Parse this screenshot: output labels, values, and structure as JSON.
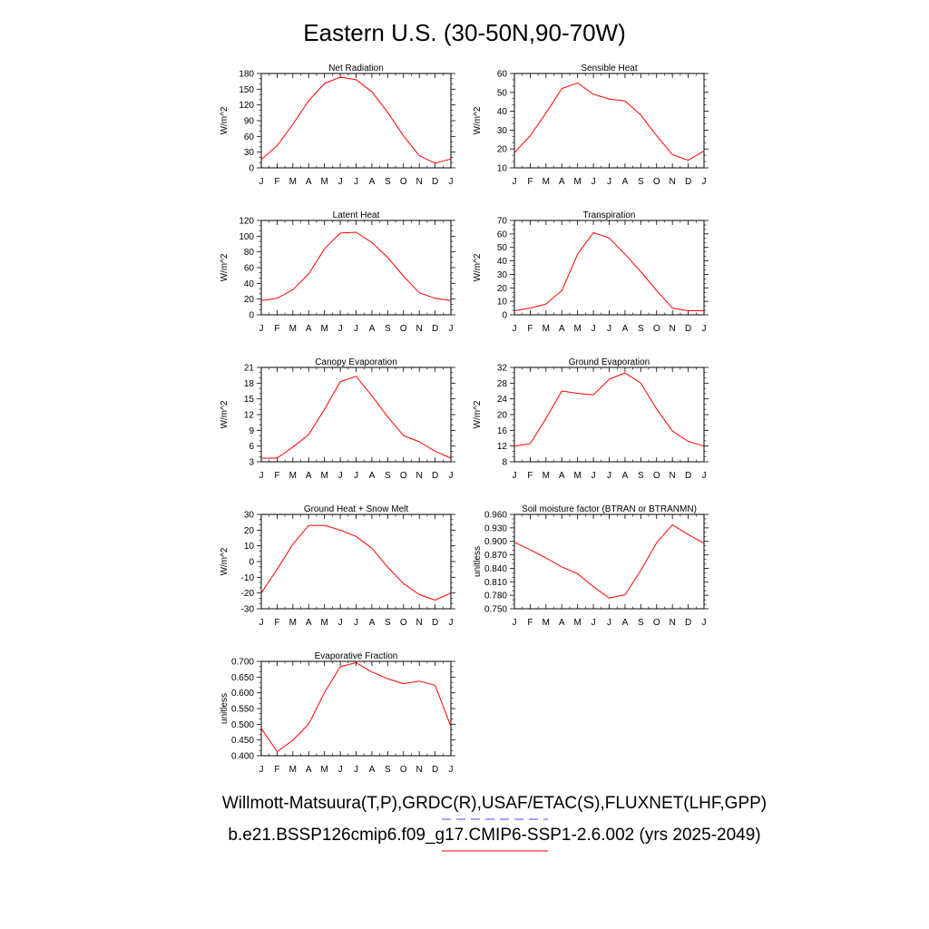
{
  "title": "Eastern U.S. (30-50N,90-70W)",
  "footer": {
    "line1": "Willmott-Matsuura(T,P),GRDC(R),USAF/ETAC(S),FLUXNET(LHF,GPP)",
    "line2": "b.e21.BSSP126cmip6.f09_g17.CMIP6-SSP1-2.6.002 (yrs 2025-2049)",
    "line1_color": "#4a4aff",
    "line2_color": "#ff0000"
  },
  "line_color": "#ff0000",
  "months": [
    "J",
    "F",
    "M",
    "A",
    "M",
    "J",
    "J",
    "A",
    "S",
    "O",
    "N",
    "D",
    "J"
  ],
  "chart_data": [
    {
      "type": "line",
      "title": "Net Radiation",
      "ylabel": "W/m^2",
      "ylim": [
        0,
        180
      ],
      "yticks": [
        "0",
        "30",
        "60",
        "90",
        "120",
        "150",
        "180"
      ],
      "yticks_val": [
        0,
        30,
        60,
        90,
        120,
        150,
        180
      ],
      "values": [
        16,
        42,
        83,
        128,
        161,
        173,
        168,
        145,
        106,
        61,
        23,
        9,
        17
      ]
    },
    {
      "type": "line",
      "title": "Sensible Heat",
      "ylabel": "W/m^2",
      "ylim": [
        10,
        60
      ],
      "yticks": [
        "10",
        "20",
        "30",
        "40",
        "50",
        "60"
      ],
      "yticks_val": [
        10,
        20,
        30,
        40,
        50,
        60
      ],
      "values": [
        18,
        27,
        39,
        52,
        55,
        49,
        46.5,
        45.5,
        38,
        27,
        17,
        14,
        19
      ]
    },
    {
      "type": "line",
      "title": "Latent Heat",
      "ylabel": "W/m^2",
      "ylim": [
        0,
        120
      ],
      "yticks": [
        "0",
        "20",
        "40",
        "60",
        "80",
        "100",
        "120"
      ],
      "yticks_val": [
        0,
        20,
        40,
        60,
        80,
        100,
        120
      ],
      "values": [
        18,
        21,
        32,
        52,
        84,
        104,
        105,
        92,
        73,
        49,
        28,
        21,
        18
      ]
    },
    {
      "type": "line",
      "title": "Transpiration",
      "ylabel": "W/m^2",
      "ylim": [
        0,
        70
      ],
      "yticks": [
        "0",
        "10",
        "20",
        "30",
        "40",
        "50",
        "60",
        "70"
      ],
      "yticks_val": [
        0,
        10,
        20,
        30,
        40,
        50,
        60,
        70
      ],
      "values": [
        3,
        5,
        8,
        18,
        45,
        61,
        57,
        45,
        32,
        18,
        5,
        3,
        3
      ]
    },
    {
      "type": "line",
      "title": "Canopy Evaporation",
      "ylabel": "W/m^2",
      "ylim": [
        3,
        21
      ],
      "yticks": [
        "3",
        "6",
        "9",
        "12",
        "15",
        "18",
        "21"
      ],
      "yticks_val": [
        3,
        6,
        9,
        12,
        15,
        18,
        21
      ],
      "values": [
        3.7,
        3.7,
        5.8,
        8.2,
        13,
        18.3,
        19.3,
        15.6,
        11.6,
        8,
        6.8,
        5,
        3.7
      ]
    },
    {
      "type": "line",
      "title": "Ground Evaporation",
      "ylabel": "W/m^2",
      "ylim": [
        8,
        32
      ],
      "yticks": [
        "8",
        "12",
        "16",
        "20",
        "24",
        "28",
        "32"
      ],
      "yticks_val": [
        8,
        12,
        16,
        20,
        24,
        28,
        32
      ],
      "values": [
        12,
        12.6,
        19,
        26,
        25.4,
        25,
        29,
        30.6,
        28,
        21.4,
        15.8,
        13.2,
        12
      ]
    },
    {
      "type": "line",
      "title": "Ground Heat + Snow Melt",
      "ylabel": "W/m^2",
      "ylim": [
        -30,
        30
      ],
      "yticks": [
        "-30",
        "-20",
        "-10",
        "0",
        "10",
        "20",
        "30"
      ],
      "yticks_val": [
        -30,
        -20,
        -10,
        0,
        10,
        20,
        30
      ],
      "values": [
        -20,
        -5,
        11,
        23,
        23,
        20,
        16,
        8.5,
        -3.5,
        -14,
        -21,
        -24.5,
        -20
      ]
    },
    {
      "type": "line",
      "title": "Soil moisture factor (BTRAN or BTRANMN)",
      "ylabel": "unitless",
      "ylim": [
        0.75,
        0.96
      ],
      "yticks": [
        "0.750",
        "0.780",
        "0.810",
        "0.840",
        "0.870",
        "0.900",
        "0.930",
        "0.960"
      ],
      "yticks_val": [
        0.75,
        0.78,
        0.81,
        0.84,
        0.87,
        0.9,
        0.93,
        0.96
      ],
      "values": [
        0.898,
        0.881,
        0.863,
        0.843,
        0.828,
        0.799,
        0.774,
        0.781,
        0.835,
        0.897,
        0.937,
        0.915,
        0.896
      ]
    },
    {
      "type": "line",
      "title": "Evaporative Fraction",
      "ylabel": "unitless",
      "ylim": [
        0.4,
        0.7
      ],
      "yticks": [
        "0.400",
        "0.450",
        "0.500",
        "0.550",
        "0.600",
        "0.650",
        "0.700"
      ],
      "yticks_val": [
        0.4,
        0.45,
        0.5,
        0.55,
        0.6,
        0.65,
        0.7
      ],
      "values": [
        0.487,
        0.413,
        0.449,
        0.501,
        0.601,
        0.683,
        0.696,
        0.666,
        0.645,
        0.629,
        0.637,
        0.624,
        0.493
      ]
    }
  ]
}
